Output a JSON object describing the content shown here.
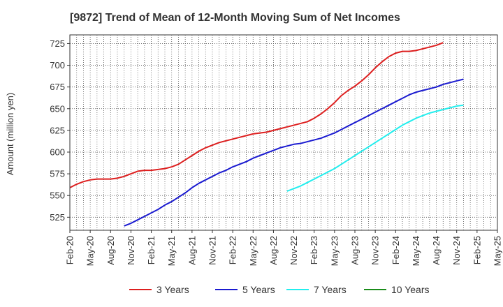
{
  "chart_data": {
    "type": "line",
    "title": "[9872]  Trend of Mean of 12-Month Moving Sum of Net Incomes",
    "ylabel": "Amount (million yen)",
    "xlabel": "",
    "ylim": [
      510,
      735
    ],
    "y_ticks": [
      525,
      550,
      575,
      600,
      625,
      650,
      675,
      700,
      725
    ],
    "x_ticks": [
      "Feb-20",
      "May-20",
      "Aug-20",
      "Nov-20",
      "Feb-21",
      "May-21",
      "Aug-21",
      "Nov-21",
      "Feb-22",
      "May-22",
      "Aug-22",
      "Nov-22",
      "Feb-23",
      "May-23",
      "Aug-23",
      "Nov-23",
      "Feb-24",
      "May-24",
      "Aug-24",
      "Nov-24",
      "Feb-25",
      "May-25"
    ],
    "grid": true,
    "legend_position": "bottom",
    "series": [
      {
        "name": "3 Years",
        "color": "#dd1f1f",
        "start": "Feb-20",
        "values": [
          559,
          563,
          566,
          568,
          569,
          569,
          569,
          570,
          572,
          575,
          578,
          579,
          579,
          580,
          581,
          583,
          586,
          591,
          596,
          601,
          605,
          608,
          611,
          613,
          615,
          617,
          619,
          621,
          622,
          623,
          625,
          627,
          629,
          631,
          633,
          635,
          639,
          644,
          650,
          657,
          665,
          671,
          676,
          682,
          689,
          697,
          704,
          710,
          714,
          716,
          716,
          717,
          719,
          721,
          723,
          726
        ]
      },
      {
        "name": "5 Years",
        "color": "#1a1ad0",
        "start": "Oct-20",
        "values": [
          515,
          518,
          522,
          526,
          530,
          534,
          539,
          543,
          548,
          553,
          559,
          564,
          568,
          572,
          576,
          579,
          583,
          586,
          589,
          593,
          596,
          599,
          602,
          605,
          607,
          609,
          610,
          612,
          614,
          616,
          619,
          622,
          626,
          630,
          634,
          638,
          642,
          646,
          650,
          654,
          658,
          662,
          666,
          669,
          671,
          673,
          675,
          678,
          680,
          682,
          684
        ]
      },
      {
        "name": "7 Years",
        "color": "#22eeee",
        "start": "Oct-22",
        "values": [
          555,
          558,
          561,
          565,
          569,
          573,
          577,
          581,
          586,
          591,
          596,
          601,
          606,
          611,
          616,
          621,
          626,
          631,
          635,
          639,
          642,
          645,
          647,
          649,
          651,
          653,
          654
        ]
      },
      {
        "name": "10 Years",
        "color": "#1a8c1a",
        "start": "",
        "values": []
      }
    ]
  }
}
